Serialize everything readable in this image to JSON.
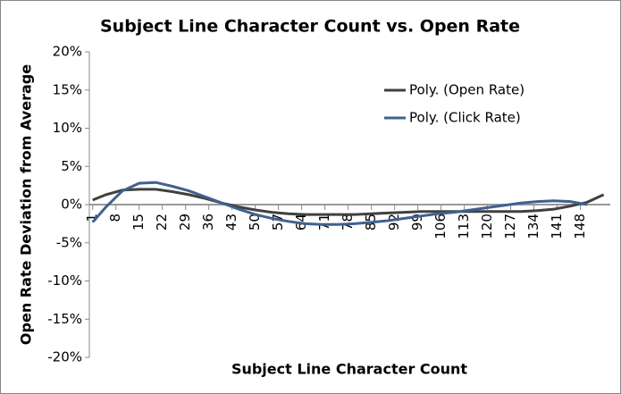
{
  "chart_data": {
    "type": "line",
    "title": "Subject Line Character Count vs. Open Rate",
    "x_label": "Subject Line Character Count",
    "y_label": "Open Rate Deviation from Average",
    "x": [
      1,
      5,
      10,
      15,
      20,
      25,
      30,
      35,
      40,
      45,
      50,
      55,
      60,
      65,
      70,
      75,
      80,
      85,
      90,
      95,
      100,
      105,
      110,
      115,
      120,
      125,
      130,
      135,
      140,
      145,
      150,
      155
    ],
    "series": [
      {
        "name": "Poly. (Open Rate)",
        "color": "#404040",
        "values": [
          0.6,
          1.3,
          1.9,
          2.0,
          2.0,
          1.7,
          1.3,
          0.8,
          0.2,
          -0.3,
          -0.7,
          -1.0,
          -1.2,
          -1.3,
          -1.3,
          -1.3,
          -1.3,
          -1.2,
          -1.1,
          -1.0,
          -0.9,
          -0.9,
          -0.9,
          -0.9,
          -0.9,
          -0.9,
          -0.9,
          -0.8,
          -0.6,
          -0.2,
          0.3,
          1.3
        ]
      },
      {
        "name": "Poly. (Click Rate)",
        "color": "#3f6190",
        "values": [
          -2.3,
          -0.3,
          1.8,
          2.8,
          2.9,
          2.4,
          1.8,
          1.0,
          0.2,
          -0.6,
          -1.3,
          -1.8,
          -2.2,
          -2.5,
          -2.6,
          -2.6,
          -2.5,
          -2.3,
          -2.1,
          -1.8,
          -1.5,
          -1.2,
          -1.0,
          -0.7,
          -0.4,
          -0.1,
          0.2,
          0.4,
          0.5,
          0.4,
          0.0,
          null
        ]
      }
    ],
    "xlim": [
      0,
      157
    ],
    "xticks": [
      1,
      8,
      15,
      22,
      29,
      36,
      43,
      50,
      57,
      64,
      71,
      78,
      85,
      92,
      99,
      106,
      113,
      120,
      127,
      134,
      141,
      148
    ],
    "ylim": [
      -20,
      20
    ],
    "yticks": [
      {
        "value": -20,
        "label": "-20%"
      },
      {
        "value": -15,
        "label": "-15%"
      },
      {
        "value": -10,
        "label": "-10%"
      },
      {
        "value": -5,
        "label": "-5%"
      },
      {
        "value": 0,
        "label": "0%"
      },
      {
        "value": 5,
        "label": "5%"
      },
      {
        "value": 10,
        "label": "10%"
      },
      {
        "value": 15,
        "label": "15%"
      },
      {
        "value": 20,
        "label": "20%"
      }
    ],
    "grid": false,
    "legend": "upper right"
  }
}
